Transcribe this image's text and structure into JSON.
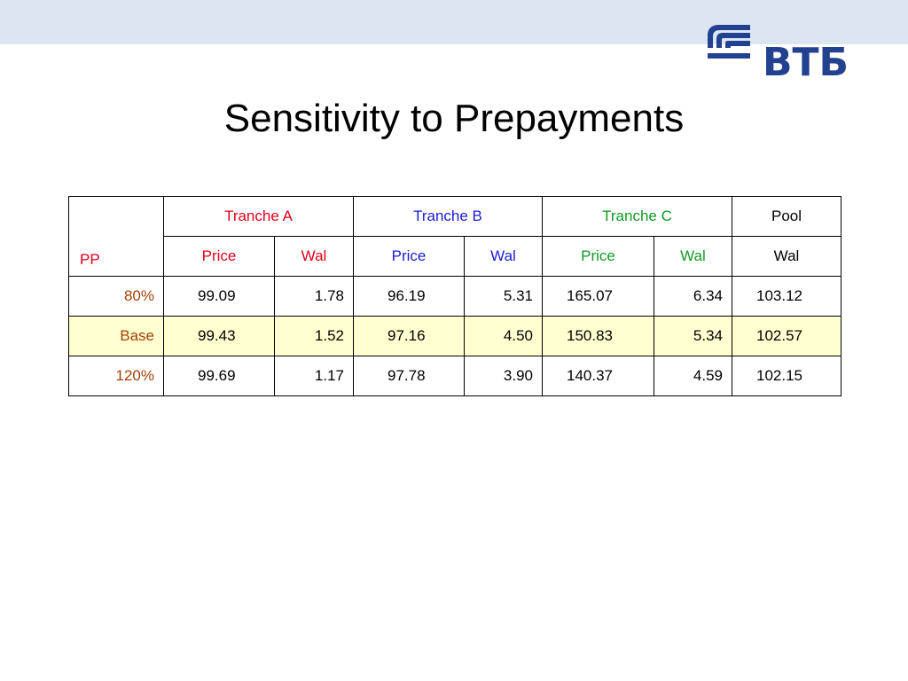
{
  "slide": {
    "title": "Sensitivity to Prepayments",
    "logo_text": "ВТБ"
  },
  "colors": {
    "tranche_a": "#e3001b",
    "tranche_b": "#1a1ad6",
    "tranche_c": "#109a24",
    "row_label": "#a0400a",
    "base_row_highlight": "#ffffd0",
    "top_band": "#dce6f2",
    "logo": "#22418e"
  },
  "table": {
    "pp_label": "PP",
    "groups": {
      "tranche_a": "Tranche A",
      "tranche_b": "Tranche B",
      "tranche_c": "Tranche C",
      "pool": "Pool"
    },
    "subheaders": {
      "a_price": "Price",
      "a_wal": "Wal",
      "b_price": "Price",
      "b_wal": "Wal",
      "c_price": "Price",
      "c_wal": "Wal",
      "pool_wal": "Wal"
    },
    "rows": [
      {
        "label": "80%",
        "a_price": "99.09",
        "a_wal": "1.78",
        "b_price": "96.19",
        "b_wal": "5.31",
        "c_price": "165.07",
        "c_wal": "6.34",
        "pool_wal": "103.12"
      },
      {
        "label": "Base",
        "a_price": "99.43",
        "a_wal": "1.52",
        "b_price": "97.16",
        "b_wal": "4.50",
        "c_price": "150.83",
        "c_wal": "5.34",
        "pool_wal": "102.57"
      },
      {
        "label": "120%",
        "a_price": "99.69",
        "a_wal": "1.17",
        "b_price": "97.78",
        "b_wal": "3.90",
        "c_price": "140.37",
        "c_wal": "4.59",
        "pool_wal": "102.15"
      }
    ]
  }
}
